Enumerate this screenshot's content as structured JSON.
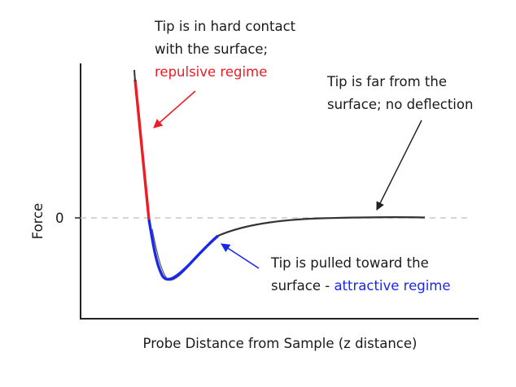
{
  "diagram": {
    "axes": {
      "ylabel": "Force",
      "xlabel": "Probe Distance from Sample (z distance)",
      "zero_tick": "0"
    },
    "annotations": {
      "repulsive": {
        "line1": "Tip is in hard contact",
        "line2": "with the surface;",
        "line3": "repulsive regime"
      },
      "far": {
        "line1": "Tip is far from the",
        "line2": "surface; no deflection"
      },
      "attractive": {
        "line1": "Tip is pulled toward the",
        "line2_prefix": "surface - ",
        "line2_highlight": "attractive regime"
      }
    },
    "colors": {
      "repulsive": "#ee1c24",
      "attractive": "#1a28e8",
      "curve": "#333333",
      "zero_line": "#c8c8c8"
    }
  }
}
